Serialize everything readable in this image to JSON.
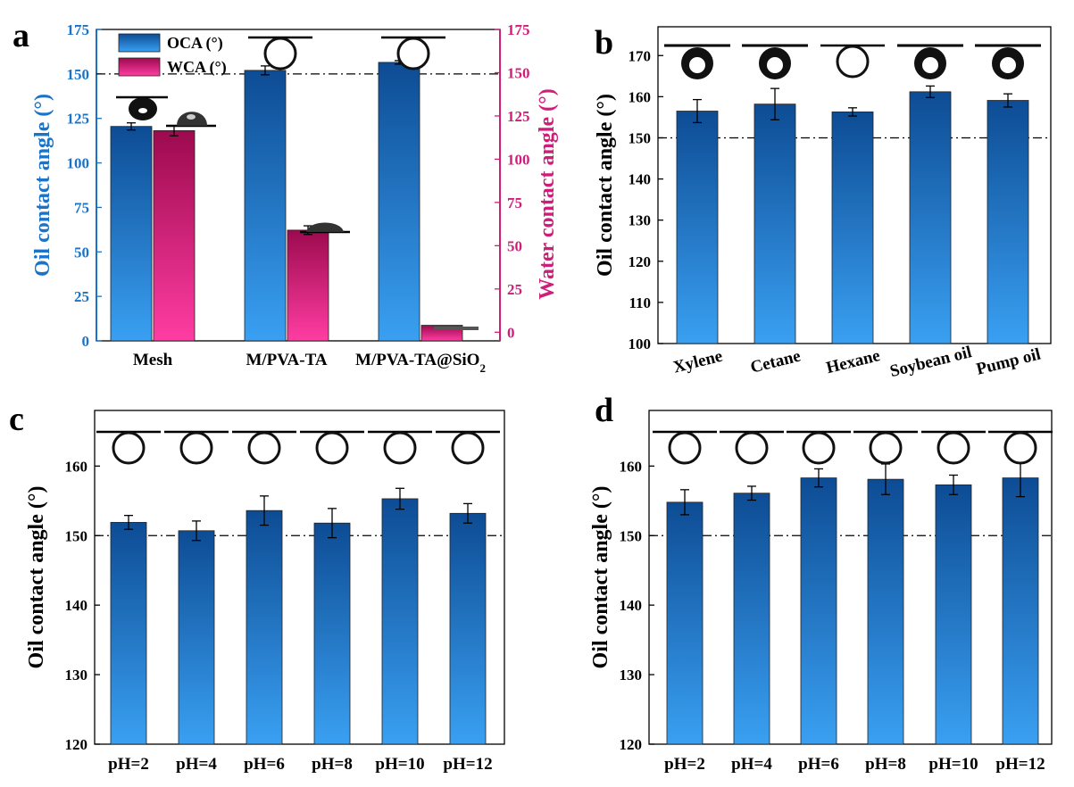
{
  "colors": {
    "oca_top": "#0d4c94",
    "oca_bottom": "#3aa0f2",
    "wca_top": "#9c0a4e",
    "wca_bottom": "#ff3da2",
    "oca_axis": "#1b73c8",
    "wca_axis": "#d11d7a",
    "black": "#000000"
  },
  "chart_data": [
    {
      "id": "a",
      "panel_label": "a",
      "type": "bar",
      "categories": [
        "Mesh",
        "M/PVA-TA",
        "M/PVA-TA@SiO"
      ],
      "category_subscripts": [
        "",
        "",
        "2"
      ],
      "series": [
        {
          "name": "OCA  (°)",
          "axis": "left",
          "values": [
            120.5,
            152,
            156.5
          ],
          "errors": [
            2,
            2.5,
            1
          ]
        },
        {
          "name": "WCA (°)",
          "axis": "right",
          "values": [
            116.5,
            59,
            4
          ],
          "errors": [
            3,
            2.5,
            0
          ]
        }
      ],
      "ylabel": "Oil contact angle (°)",
      "ylabel_right": "Water contact angle (°)",
      "ylim": [
        0,
        175
      ],
      "ylim_right": [
        -5,
        175
      ],
      "yticks": [
        0,
        25,
        50,
        75,
        100,
        125,
        150,
        175
      ],
      "yticks_right": [
        0,
        25,
        50,
        75,
        100,
        125,
        150,
        175
      ],
      "reference_line": 150,
      "legend": "top-left",
      "grid": false
    },
    {
      "id": "b",
      "panel_label": "b",
      "type": "bar",
      "categories": [
        "Xylene",
        "Cetane",
        "Hexane",
        "Soybean oil",
        "Pump oil"
      ],
      "series": [
        {
          "values": [
            156.5,
            158.2,
            156.3,
            161.2,
            159.1
          ],
          "errors": [
            2.8,
            3.8,
            1.0,
            1.4,
            1.6
          ]
        }
      ],
      "ylabel": "Oil contact angle (°)",
      "ylim": [
        100,
        177
      ],
      "yticks": [
        100,
        110,
        120,
        130,
        140,
        150,
        160,
        170
      ],
      "reference_line": 150,
      "grid": false
    },
    {
      "id": "c",
      "panel_label": "c",
      "type": "bar",
      "categories": [
        "pH=2",
        "pH=4",
        "pH=6",
        "pH=8",
        "pH=10",
        "pH=12"
      ],
      "series": [
        {
          "values": [
            151.9,
            150.7,
            153.6,
            151.8,
            155.3,
            153.2
          ],
          "errors": [
            1.0,
            1.4,
            2.1,
            2.1,
            1.5,
            1.4
          ]
        }
      ],
      "ylabel": "Oil contact angle (°)",
      "ylim": [
        120,
        168
      ],
      "yticks": [
        120,
        130,
        140,
        150,
        160
      ],
      "reference_line": 150,
      "grid": false
    },
    {
      "id": "d",
      "panel_label": "d",
      "type": "bar",
      "categories": [
        "pH=2",
        "pH=4",
        "pH=6",
        "pH=8",
        "pH=10",
        "pH=12"
      ],
      "series": [
        {
          "values": [
            154.8,
            156.1,
            158.3,
            158.1,
            157.3,
            158.3
          ],
          "errors": [
            1.8,
            1.0,
            1.3,
            2.2,
            1.4,
            2.7
          ]
        }
      ],
      "ylabel": "Oil contact angle (°)",
      "ylim": [
        120,
        168
      ],
      "yticks": [
        120,
        130,
        140,
        150,
        160
      ],
      "reference_line": 150,
      "grid": false
    }
  ]
}
